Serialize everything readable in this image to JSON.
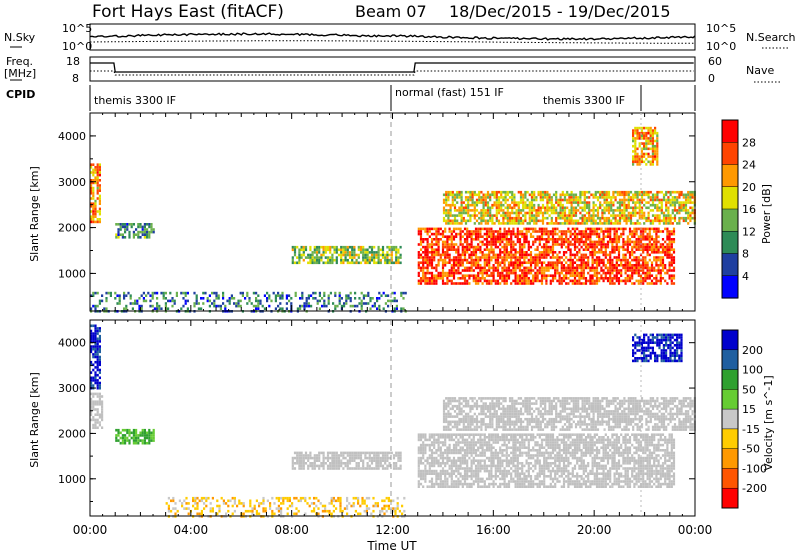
{
  "header": {
    "station": "Fort Hays East (fitACF)",
    "beam": "Beam 07",
    "dates": "18/Dec/2015 - 19/Dec/2015"
  },
  "top_panels": {
    "nsky_label": "N.Sky",
    "nsearch_label": "N.Search",
    "nsky_top_tick": "10^5",
    "nsky_bottom_tick": "10^0",
    "freq_label_1": "Freq.",
    "freq_label_2": "[MHz]",
    "freq_ticks": [
      "18",
      "8"
    ],
    "nave_label": "Nave",
    "nave_ticks": [
      "60",
      "0"
    ],
    "cpid_label": "CPID",
    "cpid_segments": [
      {
        "label": "themis 3300 IF",
        "start_h": 0,
        "end_h": 12
      },
      {
        "label": "normal (fast) 151 IF",
        "start_h": 12,
        "end_h": 21.8
      },
      {
        "label": "themis 3300 IF",
        "start_h": 21.8,
        "end_h": 24
      }
    ]
  },
  "colors": {
    "power_scale": [
      "#0000ff",
      "#1f3fa0",
      "#2e8b57",
      "#6ab04c",
      "#e0e000",
      "#ff9900",
      "#ff4400",
      "#ff0000"
    ],
    "velocity_scale": [
      "#0000cc",
      "#1f5fa0",
      "#2fa02f",
      "#66cc33",
      "#c8c8c8",
      "#ffcc00",
      "#ff9900",
      "#ff5500",
      "#ff0000"
    ],
    "ground_scatter": "#c0c0c0"
  },
  "chart_data": [
    {
      "type": "heatmap",
      "name": "power-panel",
      "ylabel": "Slant Range [km]",
      "x_ticks": [
        "00:00",
        "04:00",
        "08:00",
        "12:00",
        "16:00",
        "20:00",
        "00:00"
      ],
      "xlim_hours": [
        0,
        24
      ],
      "y_ticks": [
        1000,
        2000,
        3000,
        4000
      ],
      "ylim": [
        180,
        4500
      ],
      "colorbar": {
        "label": "Power [dB]",
        "ticks": [
          "4",
          "8",
          "12",
          "16",
          "20",
          "24",
          "28"
        ],
        "range": [
          0,
          30
        ]
      },
      "features": [
        {
          "region": "early-evening-far",
          "t_start": 0.0,
          "t_end": 0.4,
          "r_low": 2100,
          "r_high": 3400,
          "level": 22
        },
        {
          "region": "early-mid",
          "t_start": 1.0,
          "t_end": 2.5,
          "r_low": 1800,
          "r_high": 2100,
          "level": 10
        },
        {
          "region": "mid-band",
          "t_start": 8.0,
          "t_end": 12.3,
          "r_low": 1250,
          "r_high": 1600,
          "level": 15
        },
        {
          "region": "main-echo",
          "t_start": 13.0,
          "t_end": 23.2,
          "r_low": 800,
          "r_high": 2000,
          "level": 27
        },
        {
          "region": "upper-echo",
          "t_start": 14.0,
          "t_end": 24.0,
          "r_low": 2100,
          "r_high": 2800,
          "level": 19
        },
        {
          "region": "far-late",
          "t_start": 21.5,
          "t_end": 22.5,
          "r_low": 3400,
          "r_high": 4200,
          "level": 22
        },
        {
          "region": "near-range-clutter",
          "t_start": 0.0,
          "t_end": 12.5,
          "r_low": 180,
          "r_high": 600,
          "level": 9
        }
      ]
    },
    {
      "type": "heatmap",
      "name": "velocity-panel",
      "ylabel": "Slant Range [km]",
      "xlabel": "Time UT",
      "x_ticks": [
        "00:00",
        "04:00",
        "08:00",
        "12:00",
        "16:00",
        "20:00",
        "00:00"
      ],
      "xlim_hours": [
        0,
        24
      ],
      "y_ticks": [
        1000,
        2000,
        3000,
        4000
      ],
      "ylim": [
        180,
        4500
      ],
      "colorbar": {
        "label": "Velocity [m s^-1]",
        "ticks": [
          "200",
          "100",
          "50",
          "15",
          "-15",
          "-50",
          "-100",
          "-200"
        ],
        "range": [
          -250,
          250
        ]
      },
      "features": [
        {
          "region": "early-far",
          "t_start": 0.0,
          "t_end": 0.4,
          "r_low": 3000,
          "r_high": 4400,
          "level": 220
        },
        {
          "region": "early-ground",
          "t_start": 0.0,
          "t_end": 0.5,
          "r_low": 2100,
          "r_high": 2900,
          "level": 0
        },
        {
          "region": "early-mid",
          "t_start": 1.0,
          "t_end": 2.5,
          "r_low": 1800,
          "r_high": 2100,
          "level": 60
        },
        {
          "region": "mid-band",
          "t_start": 8.0,
          "t_end": 12.3,
          "r_low": 1250,
          "r_high": 1600,
          "level": 0
        },
        {
          "region": "main-ground",
          "t_start": 13.0,
          "t_end": 23.2,
          "r_low": 800,
          "r_high": 2000,
          "level": 0
        },
        {
          "region": "upper-ground",
          "t_start": 14.0,
          "t_end": 24.0,
          "r_low": 2100,
          "r_high": 2800,
          "level": 0
        },
        {
          "region": "far-late",
          "t_start": 21.5,
          "t_end": 23.5,
          "r_low": 3600,
          "r_high": 4200,
          "level": 220
        },
        {
          "region": "near-range",
          "t_start": 3.0,
          "t_end": 12.5,
          "r_low": 180,
          "r_high": 600,
          "level": -30
        }
      ]
    }
  ]
}
